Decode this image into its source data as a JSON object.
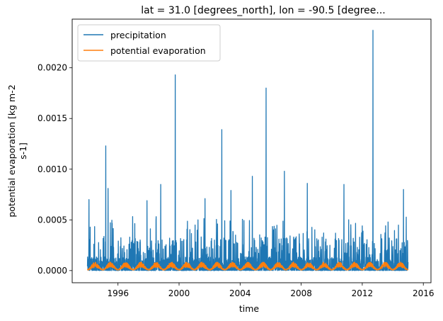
{
  "chart_data": {
    "type": "line",
    "title": "lat = 31.0 [degrees_north], lon = -90.5 [degree...",
    "xlabel": "time",
    "ylabel_line1": "potential evaporation [kg m-2",
    "ylabel_line2": "s-1]",
    "xlim": [
      1993.0,
      2016.5
    ],
    "ylim": [
      -0.00012,
      0.00248
    ],
    "xticks": [
      1996,
      2000,
      2004,
      2008,
      2012,
      2016
    ],
    "xtick_labels": [
      "1996",
      "2000",
      "2004",
      "2008",
      "2012",
      "2016"
    ],
    "yticks": [
      0.0,
      0.0005,
      0.001,
      0.0015,
      0.002
    ],
    "ytick_labels": [
      "0.0000",
      "0.0005",
      "0.0010",
      "0.0015",
      "0.0020"
    ],
    "grid": false,
    "legend_position": "top-left",
    "series": [
      {
        "name": "precipitation",
        "color": "#1f77b4",
        "x_range": [
          1994.0,
          2015.0
        ],
        "typical_max": 0.0003,
        "peaks": [
          {
            "x": 1994.1,
            "y": 0.0007
          },
          {
            "x": 1995.2,
            "y": 0.00123
          },
          {
            "x": 1995.35,
            "y": 0.00081
          },
          {
            "x": 1997.9,
            "y": 0.00069
          },
          {
            "x": 1998.8,
            "y": 0.00085
          },
          {
            "x": 1999.75,
            "y": 0.00193
          },
          {
            "x": 2001.7,
            "y": 0.00071
          },
          {
            "x": 2002.8,
            "y": 0.00139
          },
          {
            "x": 2003.4,
            "y": 0.00079
          },
          {
            "x": 2004.8,
            "y": 0.00093
          },
          {
            "x": 2005.7,
            "y": 0.0018
          },
          {
            "x": 2006.9,
            "y": 0.00098
          },
          {
            "x": 2008.4,
            "y": 0.00086
          },
          {
            "x": 2010.8,
            "y": 0.00085
          },
          {
            "x": 2012.7,
            "y": 0.00237
          },
          {
            "x": 2014.7,
            "y": 0.0008
          }
        ]
      },
      {
        "name": "potential evaporation",
        "color": "#ff7f0e",
        "x_range": [
          1994.0,
          2015.0
        ],
        "seasonal_min": 1e-05,
        "seasonal_max": 6.5e-05,
        "period_years": 1
      }
    ]
  }
}
